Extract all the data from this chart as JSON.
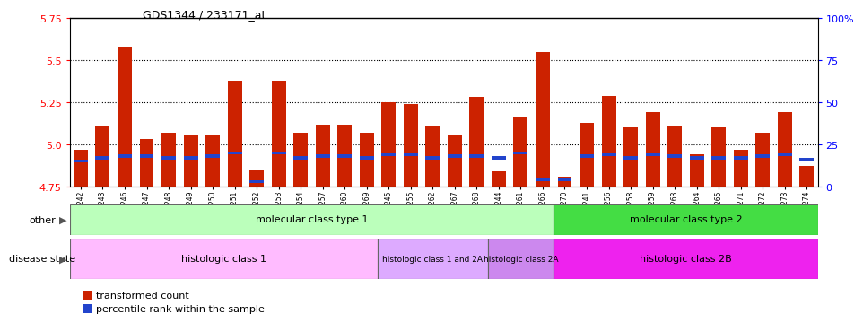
{
  "title": "GDS1344 / 233171_at",
  "samples": [
    "GSM60242",
    "GSM60243",
    "GSM60246",
    "GSM60247",
    "GSM60248",
    "GSM60249",
    "GSM60250",
    "GSM60251",
    "GSM60252",
    "GSM60253",
    "GSM60254",
    "GSM60257",
    "GSM60260",
    "GSM60269",
    "GSM60245",
    "GSM60255",
    "GSM60262",
    "GSM60267",
    "GSM60268",
    "GSM60244",
    "GSM60261",
    "GSM60266",
    "GSM60270",
    "GSM60241",
    "GSM60256",
    "GSM60258",
    "GSM60259",
    "GSM60263",
    "GSM60264",
    "GSM60265",
    "GSM60271",
    "GSM60272",
    "GSM60273",
    "GSM60274"
  ],
  "transformed_count": [
    4.97,
    5.11,
    5.58,
    5.03,
    5.07,
    5.06,
    5.06,
    5.38,
    4.85,
    5.38,
    5.07,
    5.12,
    5.12,
    5.07,
    5.25,
    5.24,
    5.11,
    5.06,
    5.28,
    4.84,
    5.16,
    5.55,
    4.81,
    5.13,
    5.29,
    5.1,
    5.19,
    5.11,
    4.94,
    5.1,
    4.97,
    5.07,
    5.19,
    4.87
  ],
  "percentile_rank": [
    15,
    17,
    18,
    18,
    17,
    17,
    18,
    20,
    3,
    20,
    17,
    18,
    18,
    17,
    19,
    19,
    17,
    18,
    18,
    17,
    20,
    4,
    4,
    18,
    19,
    17,
    19,
    18,
    17,
    17,
    17,
    18,
    19,
    16
  ],
  "ylim_left": [
    4.75,
    5.75
  ],
  "ylim_right": [
    0,
    100
  ],
  "yticks_left": [
    4.75,
    5.0,
    5.25,
    5.5,
    5.75
  ],
  "yticks_right": [
    0,
    25,
    50,
    75,
    100
  ],
  "bar_color": "#cc2200",
  "percentile_color": "#2244cc",
  "mc_color1": "#bbffbb",
  "mc_color2": "#44dd44",
  "hc_color1": "#ffbbff",
  "hc_color12": "#ddaaff",
  "hc_color2a": "#cc88ee",
  "hc_color2b": "#ee22ee",
  "mc_type1_count": 22,
  "mc_type2_count": 12,
  "hc1_count": 14,
  "hc12_count": 5,
  "hc2a_count": 3,
  "hc2b_count": 12,
  "mc_label1": "molecular class type 1",
  "mc_label2": "molecular class type 2",
  "hc_label1": "histologic class 1",
  "hc_label12": "histologic class 1 and 2A",
  "hc_label2a": "histologic class 2A",
  "hc_label2b": "histologic class 2B",
  "legend_label1": "transformed count",
  "legend_label2": "percentile rank within the sample",
  "other_label": "other",
  "disease_label": "disease state",
  "grid_lines": [
    5.0,
    5.25,
    5.5
  ]
}
